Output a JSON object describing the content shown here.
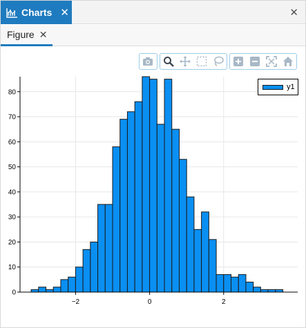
{
  "window": {
    "tab_title": "Charts",
    "tab_close": "✕",
    "window_close": "✕"
  },
  "figure_tab": {
    "label": "Figure",
    "close": "✕"
  },
  "modebar": {
    "groups": [
      [
        "camera-icon"
      ],
      [
        "zoom-icon",
        "pan-icon",
        "box-select-icon",
        "lasso-select-icon"
      ],
      [
        "zoom-in-icon",
        "zoom-out-icon",
        "autoscale-icon",
        "reset-axes-icon"
      ]
    ]
  },
  "colors": {
    "accent": "#1f7bbf",
    "bar_fill": "#0a8ff2",
    "bar_edge": "#1a1a1a",
    "grid": "#e6e6e6"
  },
  "chart_data": {
    "type": "bar",
    "series": [
      {
        "name": "y1",
        "bin_width": 0.2,
        "bin_starts": [
          -3.2,
          -3.0,
          -2.8,
          -2.6,
          -2.4,
          -2.2,
          -2.0,
          -1.8,
          -1.6,
          -1.4,
          -1.2,
          -1.0,
          -0.8,
          -0.6,
          -0.4,
          -0.2,
          0.0,
          0.2,
          0.4,
          0.6,
          0.8,
          1.0,
          1.2,
          1.4,
          1.6,
          1.8,
          2.0,
          2.2,
          2.4,
          2.6,
          2.8,
          3.0,
          3.2,
          3.4
        ],
        "values": [
          1,
          2,
          1,
          2,
          5,
          6,
          10,
          17,
          20,
          35,
          35,
          58,
          69,
          72,
          76,
          86,
          85,
          67,
          85,
          65,
          53,
          38,
          25,
          32,
          21,
          7,
          7,
          6,
          7,
          4,
          2,
          1,
          1,
          1
        ]
      }
    ],
    "xticks": [
      -2,
      0,
      2
    ],
    "xtick_labels": [
      "−2",
      "0",
      "2"
    ],
    "yticks": [
      0,
      10,
      20,
      30,
      40,
      50,
      60,
      70,
      80
    ],
    "xlim": [
      -3.5,
      4.0
    ],
    "ylim": [
      0,
      86
    ],
    "grid": true,
    "legend": {
      "entries": [
        "y1"
      ],
      "placement": "top-right"
    }
  }
}
